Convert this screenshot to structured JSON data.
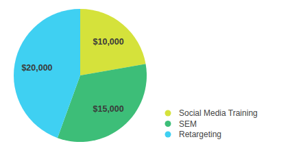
{
  "chart_data": {
    "type": "pie",
    "categories": [
      "Social Media Training",
      "SEM",
      "Retargeting"
    ],
    "values": [
      10000,
      15000,
      20000
    ],
    "value_labels": [
      "$10,000",
      "$15,000",
      "$20,000"
    ],
    "colors": [
      "#d5e23b",
      "#3dbe78",
      "#3fd0f2"
    ],
    "legend": "bottom-right",
    "data_labels": true
  }
}
